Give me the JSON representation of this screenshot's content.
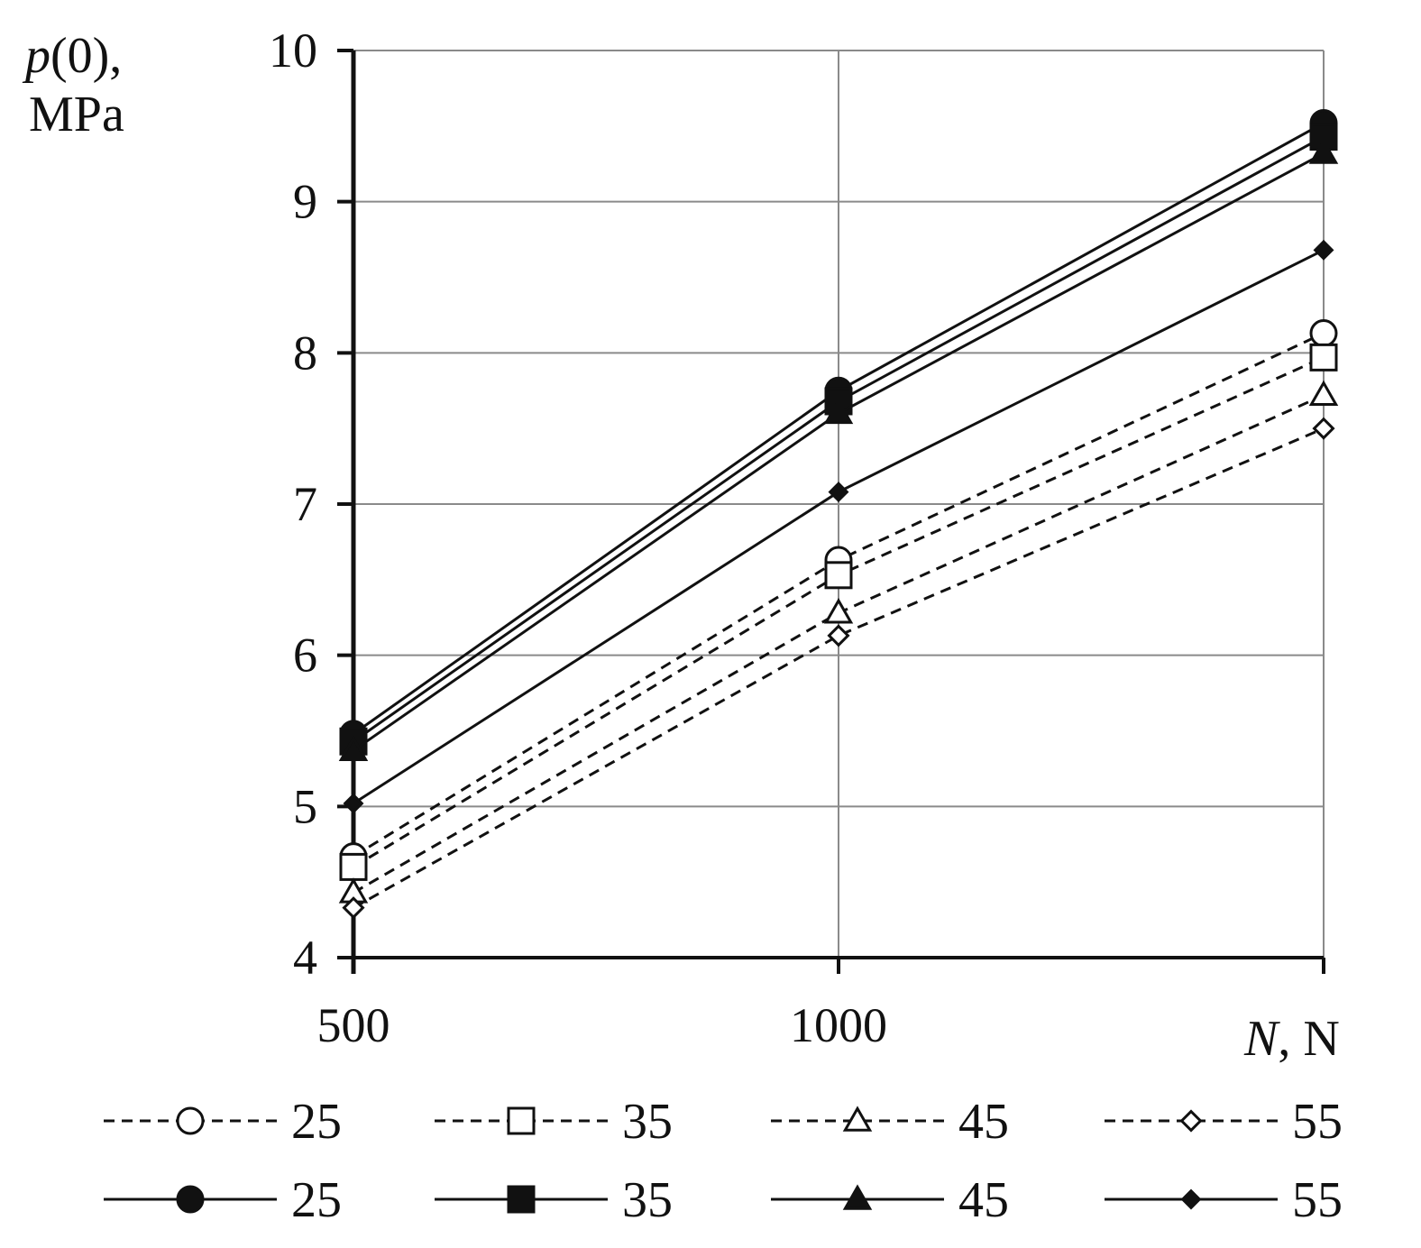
{
  "chart_data": {
    "type": "line",
    "x": [
      500,
      1000,
      1500
    ],
    "x_tick_labels": [
      "500",
      "1000"
    ],
    "xlim": [
      500,
      1500
    ],
    "ylim": [
      4,
      10
    ],
    "y_ticks": [
      4,
      5,
      6,
      7,
      8,
      9,
      10
    ],
    "ylabel_line1": "p(0),",
    "ylabel_line2": "MPa",
    "xlabel": "N, N",
    "grid": true,
    "legend_position": "bottom",
    "series": [
      {
        "name": "25",
        "style": "dashed",
        "marker": "circle-open",
        "values": [
          4.67,
          6.63,
          8.13
        ]
      },
      {
        "name": "35",
        "style": "dashed",
        "marker": "square-open",
        "values": [
          4.6,
          6.53,
          7.97
        ]
      },
      {
        "name": "45",
        "style": "dashed",
        "marker": "triangle-open",
        "values": [
          4.43,
          6.28,
          7.72
        ]
      },
      {
        "name": "55",
        "style": "dashed",
        "marker": "diamond-open",
        "values": [
          4.33,
          6.13,
          7.5
        ]
      },
      {
        "name": "25",
        "style": "solid",
        "marker": "circle-filled",
        "values": [
          5.48,
          7.75,
          9.52
        ]
      },
      {
        "name": "35",
        "style": "solid",
        "marker": "square-filled",
        "values": [
          5.43,
          7.68,
          9.43
        ]
      },
      {
        "name": "45",
        "style": "solid",
        "marker": "triangle-filled",
        "values": [
          5.37,
          7.6,
          9.32
        ]
      },
      {
        "name": "55",
        "style": "solid",
        "marker": "diamond-filled",
        "values": [
          5.02,
          7.08,
          8.68
        ]
      }
    ]
  }
}
